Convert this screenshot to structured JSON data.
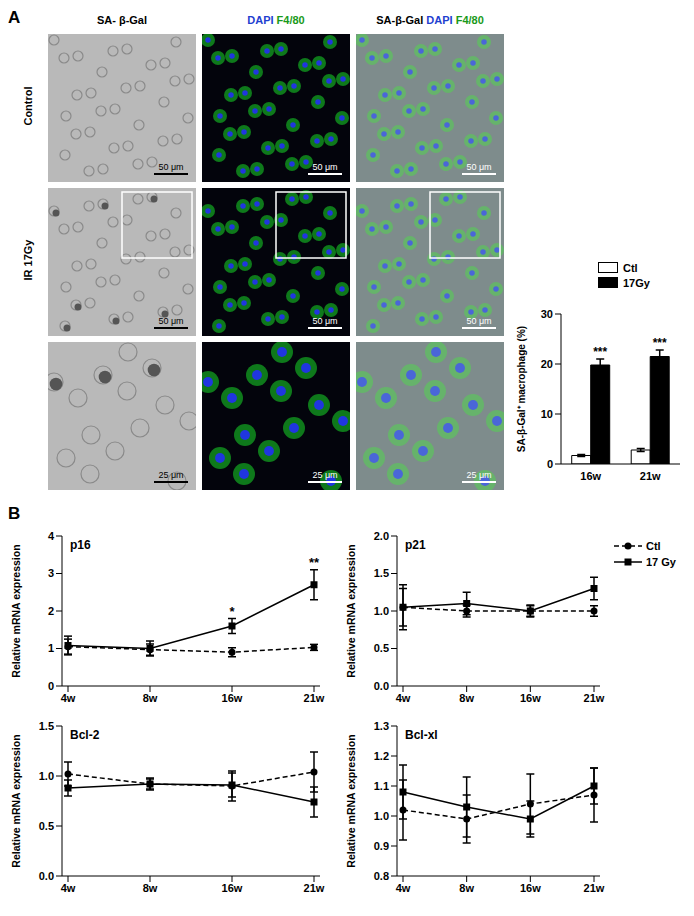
{
  "figure": {
    "panel_labels": [
      "A",
      "B"
    ],
    "image_columns": [
      [
        {
          "text": "SA- β-Gal",
          "color": "#000000"
        }
      ],
      [
        {
          "text": "DAPI",
          "color": "#1f3fd0"
        },
        {
          "text": "F4/80",
          "color": "#1a9a1a"
        }
      ],
      [
        {
          "text": "SA-β-Gal",
          "color": "#000000"
        },
        {
          "text": "DAPI",
          "color": "#1f3fd0"
        },
        {
          "text": "F4/80",
          "color": "#1a9a1a"
        }
      ]
    ],
    "image_rows": [
      "Control",
      "IR 17Gy"
    ],
    "scale_bars": [
      "50 μm",
      "50 μm",
      "25 μm"
    ]
  },
  "chart_data": [
    {
      "type": "bar",
      "y_label": "SA-β-Gal⁺ macrophage (%)",
      "categories": [
        "16w",
        "21w"
      ],
      "series": [
        {
          "name": "Ctl",
          "color": "#ffffff",
          "values": [
            1.7,
            2.8
          ],
          "errors": [
            0.2,
            0.3
          ]
        },
        {
          "name": "17Gy",
          "color": "#000000",
          "values": [
            19.8,
            21.5
          ],
          "errors": [
            1.2,
            1.3
          ]
        }
      ],
      "ylim": [
        0,
        30
      ],
      "yticks": [
        0,
        10,
        20,
        30
      ],
      "legend": "upper right",
      "annotations": [
        {
          "series": "17Gy",
          "x": "16w",
          "text": "***"
        },
        {
          "series": "17Gy",
          "x": "21w",
          "text": "***"
        }
      ]
    },
    {
      "type": "line",
      "title": "p16",
      "y_label": "Relative mRNA expression",
      "categories": [
        "4w",
        "8w",
        "16w",
        "21w"
      ],
      "series": [
        {
          "name": "Ctl",
          "color": "#000000",
          "marker": "circle",
          "line_style": "dashed",
          "values": [
            1.05,
            0.97,
            0.9,
            1.03
          ],
          "errors": [
            0.2,
            0.15,
            0.12,
            0.08
          ]
        },
        {
          "name": "17 Gy",
          "color": "#000000",
          "marker": "square",
          "line_style": "solid",
          "values": [
            1.08,
            1.0,
            1.6,
            2.7
          ],
          "errors": [
            0.25,
            0.2,
            0.2,
            0.4
          ]
        }
      ],
      "ylim": [
        0,
        4
      ],
      "yticks": [
        0,
        1,
        2,
        3,
        4
      ],
      "annotations": [
        {
          "x": "16w",
          "text": "*"
        },
        {
          "x": "21w",
          "text": "**"
        }
      ]
    },
    {
      "type": "line",
      "title": "p21",
      "y_label": "Relative mRNA expression",
      "categories": [
        "4w",
        "8w",
        "16w",
        "21w"
      ],
      "series": [
        {
          "name": "Ctl",
          "color": "#000000",
          "marker": "circle",
          "line_style": "dashed",
          "values": [
            1.05,
            1.0,
            1.0,
            1.0
          ],
          "errors": [
            0.3,
            0.08,
            0.07,
            0.07
          ]
        },
        {
          "name": "17 Gy",
          "color": "#000000",
          "marker": "square",
          "line_style": "solid",
          "values": [
            1.05,
            1.1,
            1.0,
            1.3
          ],
          "errors": [
            0.25,
            0.15,
            0.08,
            0.15
          ]
        }
      ],
      "ylim": [
        0,
        2
      ],
      "yticks": [
        {
          "value": 0,
          "label": "0.0"
        },
        0.5,
        {
          "value": 1,
          "label": "1.0"
        },
        1.5,
        {
          "value": 2,
          "label": "2.0"
        }
      ],
      "legend": "right"
    },
    {
      "type": "line",
      "title": "Bcl-2",
      "y_label": "Relative mRNA expression",
      "categories": [
        "4w",
        "8w",
        "16w",
        "21w"
      ],
      "series": [
        {
          "name": "Ctl",
          "color": "#000000",
          "marker": "circle",
          "line_style": "dashed",
          "values": [
            1.02,
            0.92,
            0.9,
            1.04
          ],
          "errors": [
            0.12,
            0.06,
            0.15,
            0.2
          ]
        },
        {
          "name": "17 Gy",
          "color": "#000000",
          "marker": "square",
          "line_style": "solid",
          "values": [
            0.88,
            0.92,
            0.91,
            0.74
          ],
          "errors": [
            0.08,
            0.05,
            0.12,
            0.15
          ]
        }
      ],
      "ylim": [
        0,
        1.5
      ],
      "yticks": [
        {
          "value": 0,
          "label": "0.0"
        },
        0.5,
        {
          "value": 1,
          "label": "1.0"
        },
        1.5
      ]
    },
    {
      "type": "line",
      "title": "Bcl-xl",
      "y_label": "Relative mRNA expression",
      "categories": [
        "4w",
        "8w",
        "16w",
        "21w"
      ],
      "series": [
        {
          "name": "Ctl",
          "color": "#000000",
          "marker": "circle",
          "line_style": "dashed",
          "values": [
            1.02,
            0.99,
            1.04,
            1.07
          ],
          "errors": [
            0.1,
            0.08,
            0.1,
            0.09
          ]
        },
        {
          "name": "17 Gy",
          "color": "#000000",
          "marker": "square",
          "line_style": "solid",
          "values": [
            1.08,
            1.03,
            0.99,
            1.1
          ],
          "errors": [
            0.09,
            0.1,
            0.06,
            0.06
          ]
        }
      ],
      "ylim": [
        0.8,
        1.3
      ],
      "yticks": [
        0.8,
        0.9,
        {
          "value": 1,
          "label": "1.0"
        },
        1.1,
        1.2,
        1.3
      ]
    }
  ]
}
